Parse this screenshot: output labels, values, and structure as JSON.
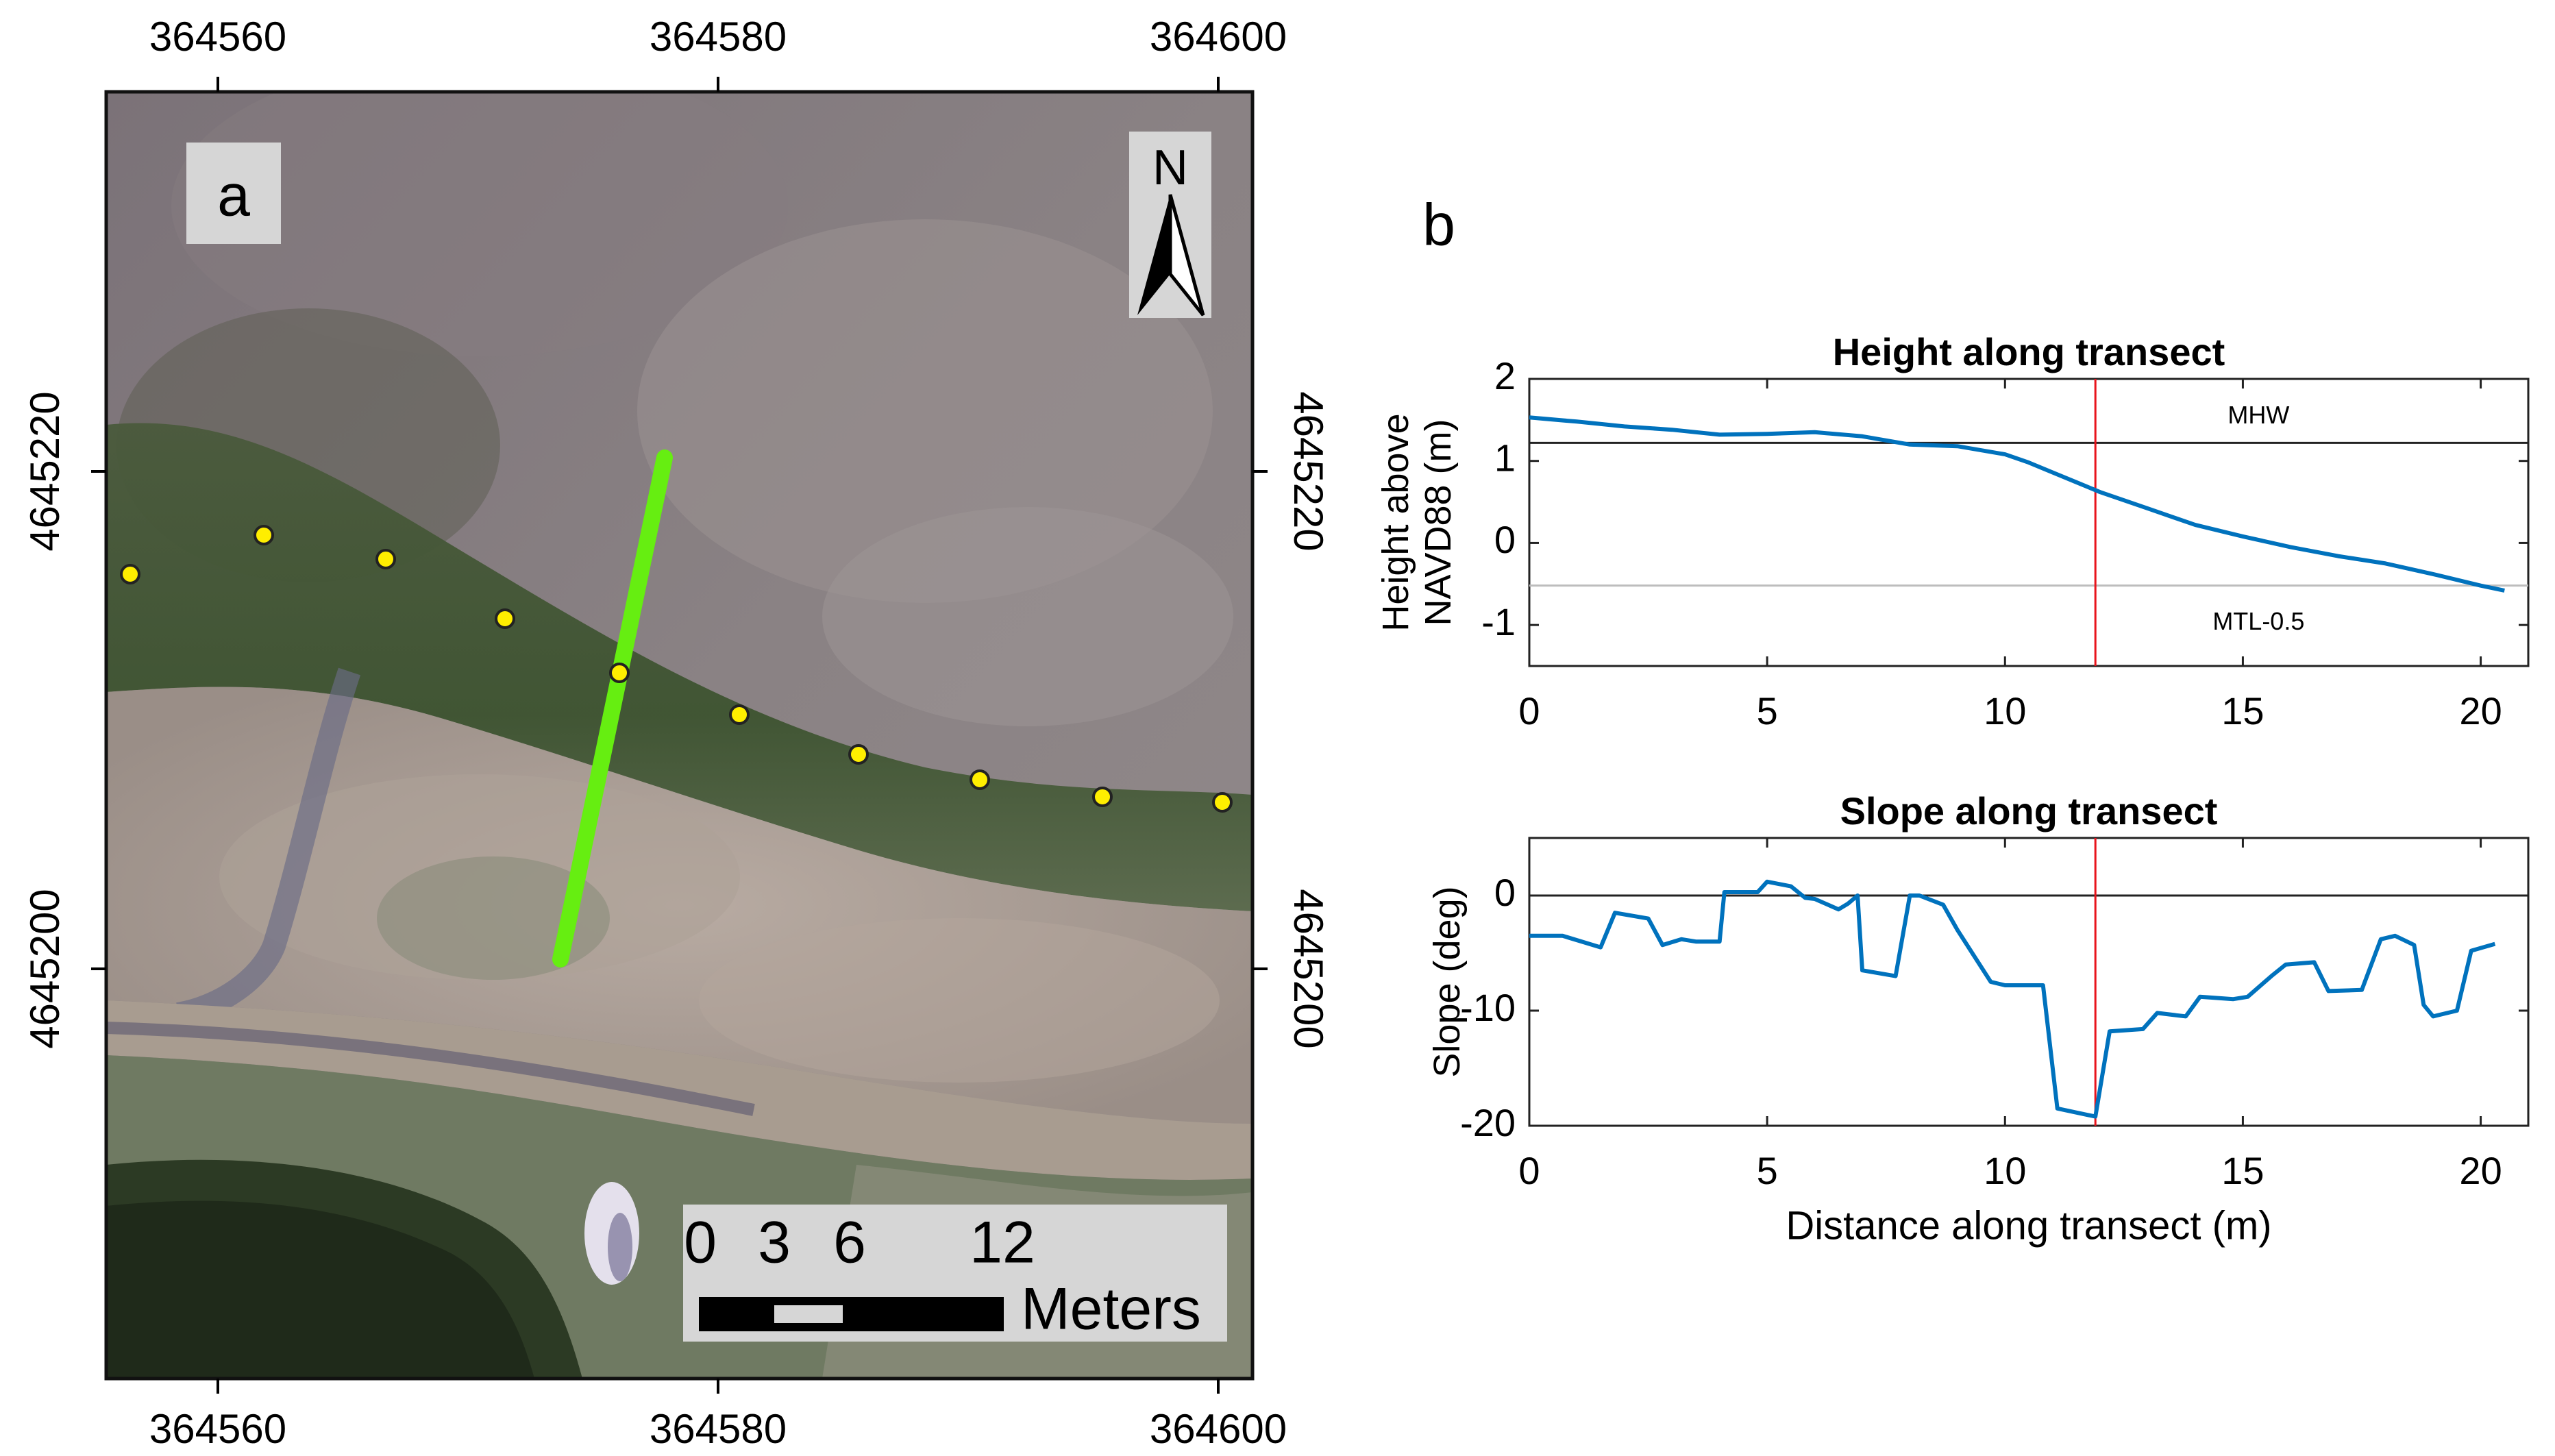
{
  "panel_a": {
    "label": "a",
    "north_label": "N",
    "x_ticks": [
      "364560",
      "364580",
      "364600"
    ],
    "y_ticks": [
      "4645220",
      "4645200"
    ],
    "scale_bar": {
      "ticks": [
        "0",
        "3",
        "6",
        "12"
      ],
      "unit": "Meters"
    },
    "colors": {
      "transect": "#66ee11",
      "points": "#ffee00",
      "points_edge": "#222222"
    }
  },
  "panel_b": {
    "label": "b"
  },
  "chart_data": [
    {
      "type": "line",
      "title": "Height along transect",
      "xlabel": "",
      "ylabel": "Height above\nNAVD88 (m)",
      "xlim": [
        0,
        21
      ],
      "ylim": [
        -1.5,
        2
      ],
      "x_ticks": [
        0,
        5,
        10,
        15,
        20
      ],
      "y_ticks": [
        2,
        1,
        0,
        -1
      ],
      "color": "#0072BD",
      "marker_x": 11.9,
      "reference_lines": [
        {
          "label": "MHW",
          "y": 1.22
        },
        {
          "label": "MTL-0.5",
          "y": -0.52
        }
      ],
      "series": [
        {
          "x": [
            0,
            1,
            2,
            3,
            4,
            5,
            6,
            7,
            8,
            9,
            10,
            10.5,
            11,
            11.5,
            12,
            13,
            14,
            15,
            16,
            17,
            18,
            19,
            20,
            20.5
          ],
          "values": [
            1.53,
            1.48,
            1.42,
            1.38,
            1.32,
            1.33,
            1.35,
            1.3,
            1.2,
            1.18,
            1.08,
            0.98,
            0.86,
            0.74,
            0.62,
            0.42,
            0.22,
            0.08,
            -0.05,
            -0.16,
            -0.25,
            -0.38,
            -0.52,
            -0.58
          ]
        }
      ]
    },
    {
      "type": "line",
      "title": "Slope along transect",
      "xlabel": "Distance along transect (m)",
      "ylabel": "Slope (deg)",
      "xlim": [
        0,
        21
      ],
      "ylim": [
        -20,
        5
      ],
      "x_ticks": [
        0,
        5,
        10,
        15,
        20
      ],
      "y_ticks": [
        0,
        -10,
        -20
      ],
      "color": "#0072BD",
      "marker_x": 11.9,
      "reference_lines": [
        {
          "label": "",
          "y": 0
        }
      ],
      "series": [
        {
          "x": [
            0,
            0.7,
            1.5,
            1.8,
            2.5,
            2.8,
            3.2,
            3.5,
            4.0,
            4.1,
            4.8,
            5.0,
            5.5,
            5.8,
            6.0,
            6.5,
            6.7,
            6.9,
            7.0,
            7.7,
            8.0,
            8.2,
            8.7,
            9.0,
            9.7,
            10.0,
            10.8,
            11.1,
            11.9,
            12.2,
            12.9,
            13.2,
            13.8,
            14.1,
            14.8,
            15.1,
            15.6,
            15.9,
            16.5,
            16.8,
            17.5,
            17.9,
            18.2,
            18.6,
            18.8,
            19.0,
            19.5,
            19.8,
            20.3
          ],
          "values": [
            -3.5,
            -3.5,
            -4.5,
            -1.5,
            -2.0,
            -4.3,
            -3.8,
            -4.0,
            -4.0,
            0.3,
            0.3,
            1.2,
            0.8,
            -0.2,
            -0.3,
            -1.2,
            -0.7,
            0.0,
            -6.5,
            -7.0,
            0.0,
            0.0,
            -0.8,
            -3.0,
            -7.5,
            -7.8,
            -7.8,
            -18.5,
            -19.2,
            -11.8,
            -11.6,
            -10.2,
            -10.5,
            -8.8,
            -9.0,
            -8.8,
            -7.0,
            -6.0,
            -5.8,
            -8.3,
            -8.2,
            -3.8,
            -3.5,
            -4.3,
            -9.5,
            -10.5,
            -10.0,
            -4.8,
            -4.2
          ]
        }
      ]
    }
  ]
}
